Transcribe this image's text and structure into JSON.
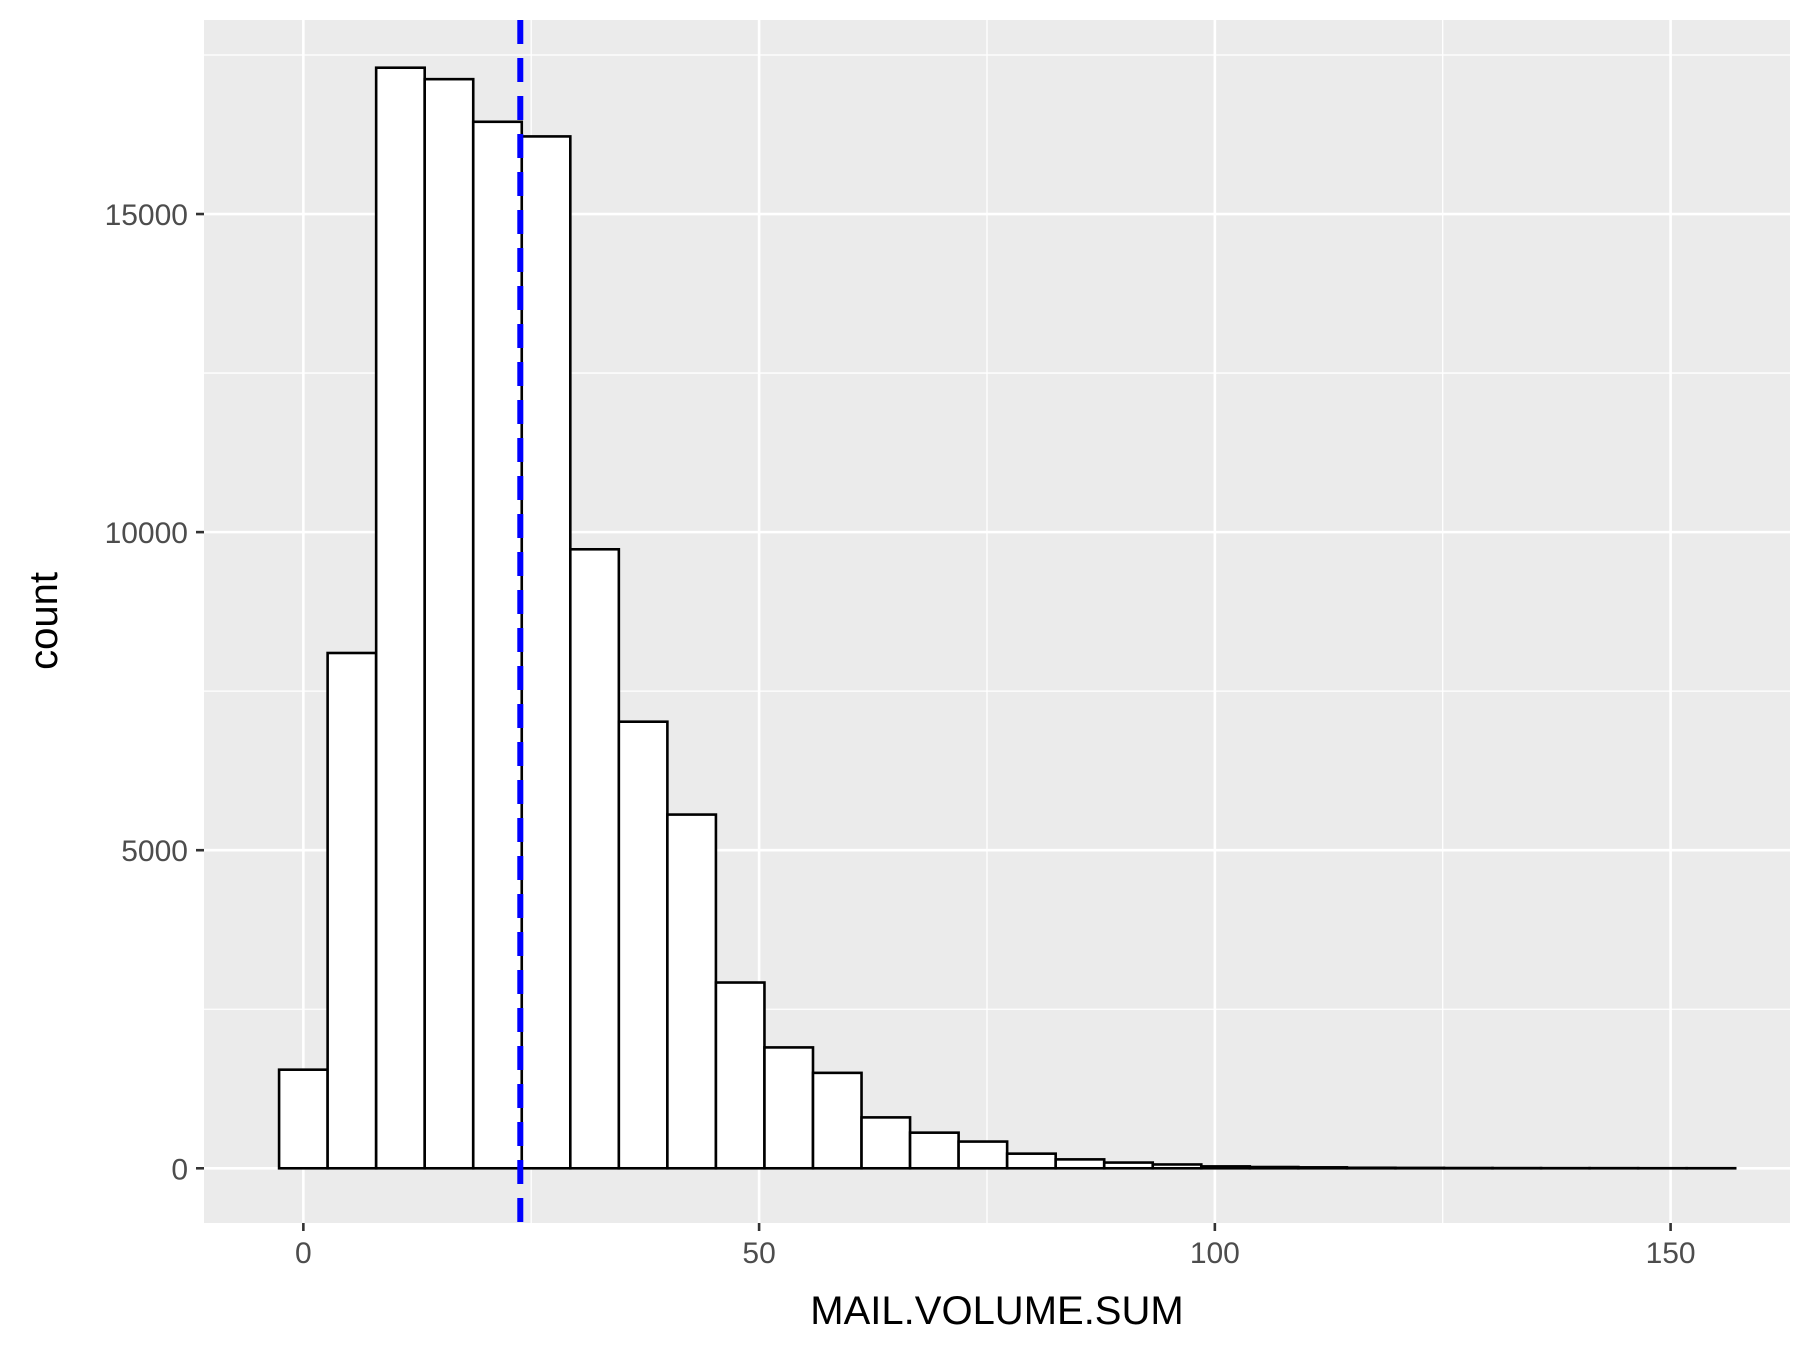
{
  "chart_data": {
    "type": "bar",
    "subtype": "histogram",
    "xlabel": "MAIL.VOLUME.SUM",
    "ylabel": "count",
    "xlim": [
      -10.9,
      163.1
    ],
    "ylim": [
      -860,
      18050
    ],
    "x_ticks": [
      0,
      50,
      100,
      150
    ],
    "x_tick_labels": [
      "0",
      "50",
      "100",
      "150"
    ],
    "y_ticks": [
      0,
      5000,
      10000,
      15000
    ],
    "y_tick_labels": [
      "0",
      "5000",
      "10000",
      "15000"
    ],
    "grid": true,
    "panel_background": "#ebebeb",
    "grid_color": "#ffffff",
    "bar_fill": "#ffffff",
    "bar_outline": "#000000",
    "bin_width": 5.325,
    "bins": [
      {
        "x": 0.0,
        "count": 1550
      },
      {
        "x": 5.325,
        "count": 8100
      },
      {
        "x": 10.65,
        "count": 17300
      },
      {
        "x": 15.975,
        "count": 17120
      },
      {
        "x": 21.3,
        "count": 16450
      },
      {
        "x": 26.625,
        "count": 16220
      },
      {
        "x": 31.95,
        "count": 9730
      },
      {
        "x": 37.275,
        "count": 7020
      },
      {
        "x": 42.6,
        "count": 5560
      },
      {
        "x": 47.925,
        "count": 2920
      },
      {
        "x": 53.25,
        "count": 1900
      },
      {
        "x": 58.575,
        "count": 1500
      },
      {
        "x": 63.9,
        "count": 800
      },
      {
        "x": 69.225,
        "count": 560
      },
      {
        "x": 74.55,
        "count": 420
      },
      {
        "x": 79.875,
        "count": 230
      },
      {
        "x": 85.2,
        "count": 140
      },
      {
        "x": 90.525,
        "count": 90
      },
      {
        "x": 95.85,
        "count": 60
      },
      {
        "x": 101.175,
        "count": 30
      },
      {
        "x": 106.5,
        "count": 20
      },
      {
        "x": 111.825,
        "count": 15
      },
      {
        "x": 117.15,
        "count": 8
      },
      {
        "x": 122.475,
        "count": 6
      },
      {
        "x": 127.8,
        "count": 4
      },
      {
        "x": 133.125,
        "count": 3
      },
      {
        "x": 138.45,
        "count": 2
      },
      {
        "x": 143.775,
        "count": 2
      },
      {
        "x": 149.1,
        "count": 1
      },
      {
        "x": 154.425,
        "count": 1
      }
    ],
    "reference_line": {
      "x": 23.8,
      "color": "#0000ff",
      "style": "dashed"
    }
  }
}
